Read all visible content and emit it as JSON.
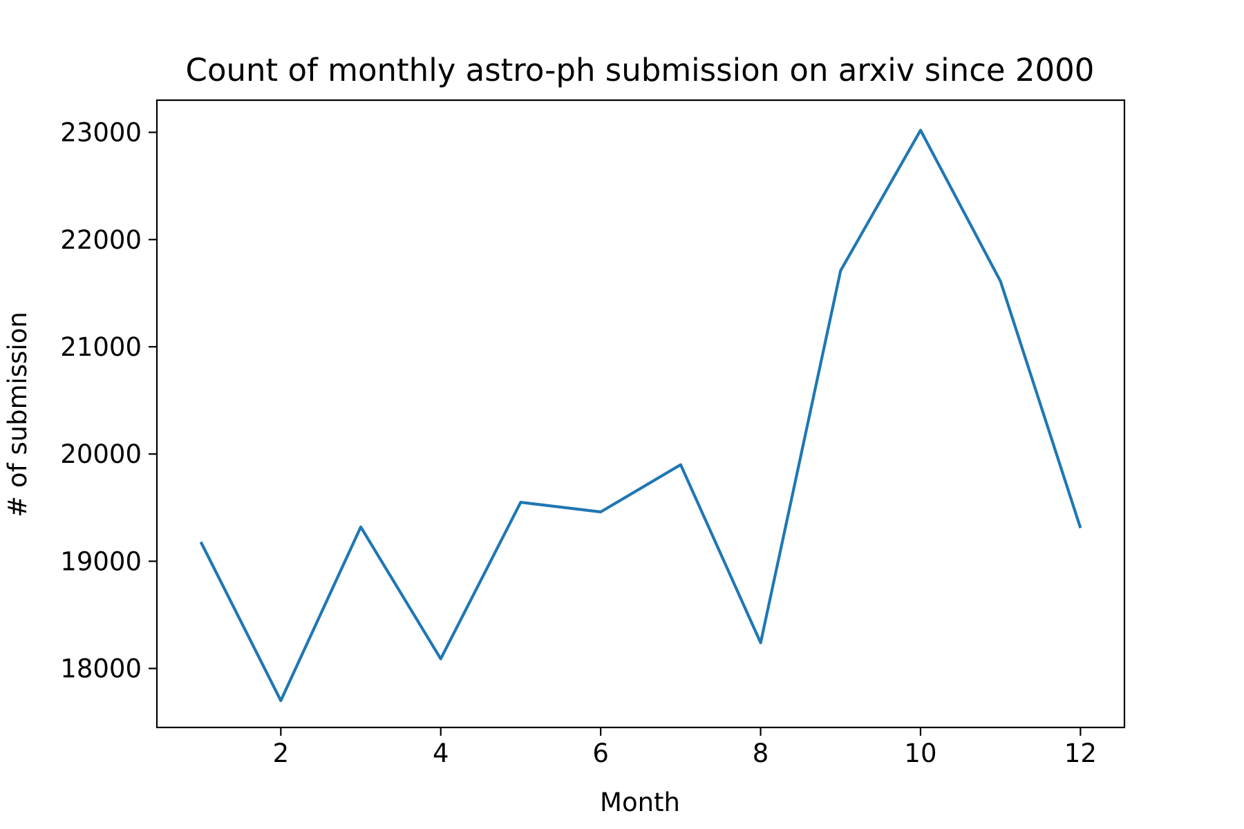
{
  "chart_data": {
    "type": "line",
    "title": "Count of monthly astro-ph submission on arxiv since 2000",
    "xlabel": "Month",
    "ylabel": "# of submission",
    "xlim": [
      0.45,
      12.55
    ],
    "ylim": [
      17450,
      23300
    ],
    "xticks": [
      2,
      4,
      6,
      8,
      10,
      12
    ],
    "yticks": [
      18000,
      19000,
      20000,
      21000,
      22000,
      23000
    ],
    "grid": false,
    "series": [
      {
        "color": "#1f77b4",
        "x": [
          1,
          2,
          3,
          4,
          5,
          6,
          7,
          8,
          9,
          10,
          11,
          12
        ],
        "y": [
          19180,
          17700,
          19320,
          18090,
          19550,
          19460,
          19900,
          18240,
          21710,
          23020,
          21610,
          19310
        ]
      }
    ]
  }
}
